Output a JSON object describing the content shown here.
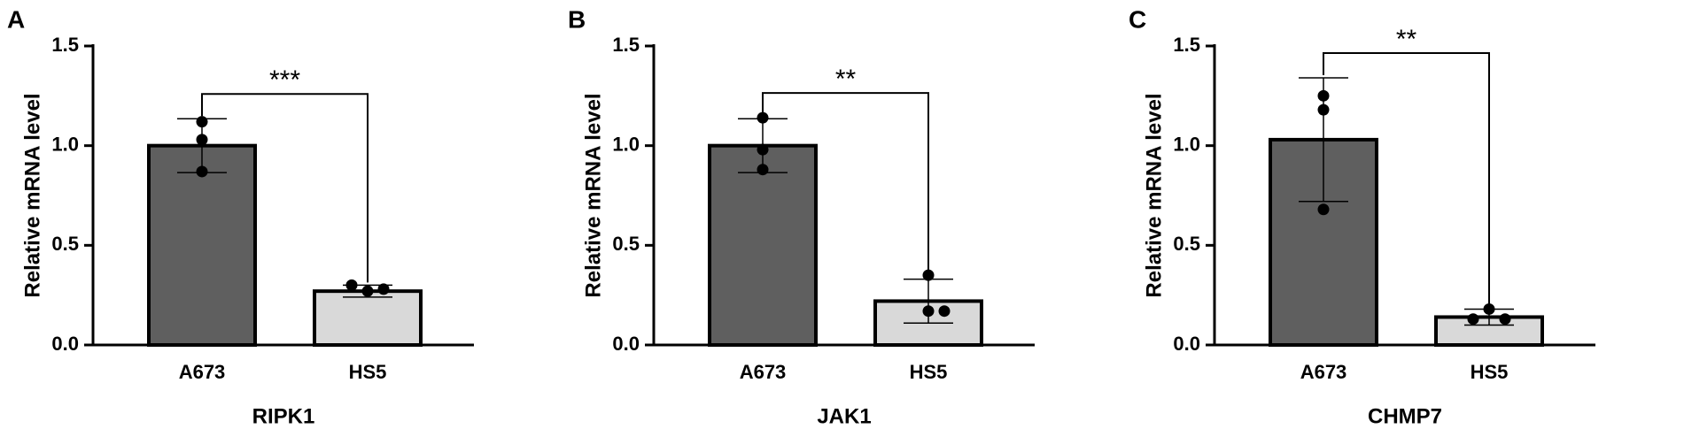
{
  "chart_data": [
    {
      "type": "bar",
      "panel_label": "A",
      "x_label": "RIPK1",
      "y_label": "Relative mRNA level",
      "categories": [
        "A673",
        "HS5"
      ],
      "values": [
        1.0,
        0.27
      ],
      "errors": [
        0.135,
        0.03
      ],
      "points": [
        [
          1.12,
          1.03,
          0.87
        ],
        [
          0.27,
          0.3,
          0.28
        ]
      ],
      "colors": [
        "#5f5f5f",
        "#d9d9d9"
      ],
      "ylim": [
        0,
        1.5
      ],
      "yticks": [
        {
          "value": 0,
          "label": "0.0"
        },
        0.5,
        {
          "value": 1,
          "label": "1.0"
        },
        1.5
      ],
      "significance": "***"
    },
    {
      "type": "bar",
      "panel_label": "B",
      "x_label": "JAK1",
      "y_label": "Relative mRNA level",
      "categories": [
        "A673",
        "HS5"
      ],
      "values": [
        1.0,
        0.22
      ],
      "errors": [
        0.135,
        0.11
      ],
      "points": [
        [
          1.14,
          0.98,
          0.88
        ],
        [
          0.35,
          0.17,
          0.17
        ]
      ],
      "colors": [
        "#5f5f5f",
        "#d9d9d9"
      ],
      "ylim": [
        0,
        1.5
      ],
      "yticks": [
        {
          "value": 0,
          "label": "0.0"
        },
        0.5,
        {
          "value": 1,
          "label": "1.0"
        },
        1.5
      ],
      "significance": "**"
    },
    {
      "type": "bar",
      "panel_label": "C",
      "x_label": "CHMP7",
      "y_label": "Relative mRNA level",
      "categories": [
        "A673",
        "HS5"
      ],
      "values": [
        1.03,
        0.14
      ],
      "errors": [
        0.31,
        0.04
      ],
      "points": [
        [
          1.25,
          1.18,
          0.68
        ],
        [
          0.18,
          0.13,
          0.13
        ]
      ],
      "colors": [
        "#5f5f5f",
        "#d9d9d9"
      ],
      "ylim": [
        0,
        1.5
      ],
      "yticks": [
        {
          "value": 0,
          "label": "0.0"
        },
        0.5,
        {
          "value": 1,
          "label": "1.0"
        },
        1.5
      ],
      "significance": "**"
    }
  ]
}
